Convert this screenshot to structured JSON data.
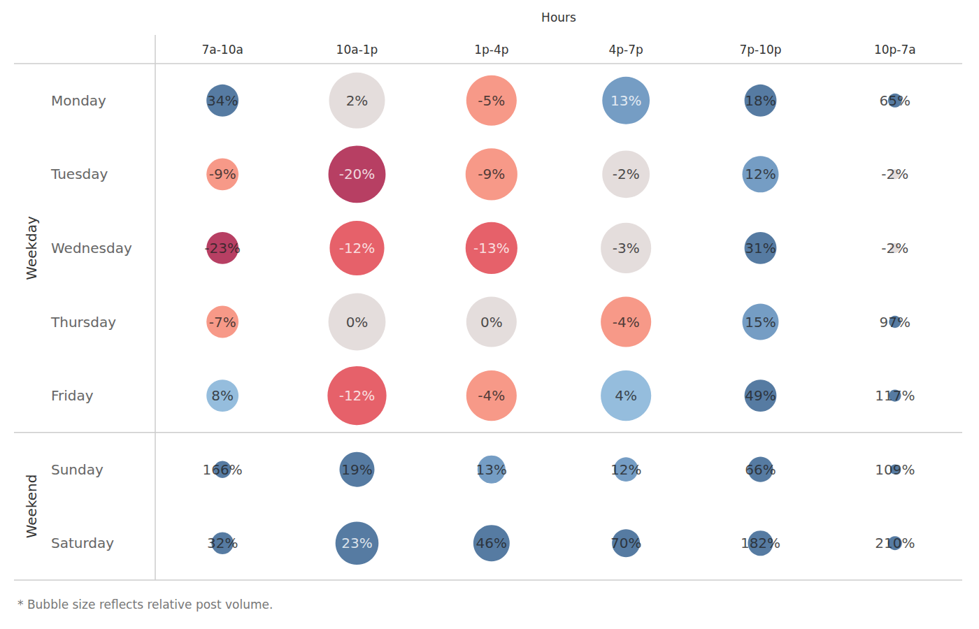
{
  "chart_data": {
    "type": "bubble_grid",
    "x_title": "Hours",
    "categories": [
      "7a-10a",
      "10a-1p",
      "1p-4p",
      "4p-7p",
      "7p-10p",
      "10p-7a"
    ],
    "data_labels": true,
    "footnote": "* Bubble size reflects relative post volume.",
    "groups": [
      {
        "name": "Weekday",
        "rows": [
          {
            "name": "Monday",
            "values": [
              34,
              2,
              -5,
              13,
              18,
              65
            ],
            "value_labels": [
              "34%",
              "2%",
              "-5%",
              "13%",
              "18%",
              "65%"
            ],
            "volume": [
              21,
              64,
              52,
              46,
              21,
              4
            ],
            "colors": [
              "#2c5a8b",
              "#ddd4d3",
              "#f5806a",
              "#5285b5",
              "#2c5a8b",
              "#2c5a8b"
            ]
          },
          {
            "name": "Tuesday",
            "values": [
              -9,
              -20,
              -9,
              -2,
              12,
              -2
            ],
            "value_labels": [
              "-9%",
              "-20%",
              "-9%",
              "-2%",
              "12%",
              "-2%"
            ],
            "volume": [
              21,
              67,
              55,
              46,
              27,
              2
            ],
            "colors": [
              "#f5806a",
              "#a50f3c",
              "#f5806a",
              "#ddd4d3",
              "#5285b5",
              "#ddd4d3"
            ]
          },
          {
            "name": "Wednesday",
            "values": [
              -23,
              -12,
              -13,
              -3,
              31,
              -2
            ],
            "value_labels": [
              "-23%",
              "-12%",
              "-13%",
              "-3%",
              "31%",
              "-2%"
            ],
            "volume": [
              21,
              61,
              55,
              52,
              21,
              2
            ],
            "colors": [
              "#a50f3c",
              "#e03a45",
              "#e03a45",
              "#ddd4d3",
              "#2c5a8b",
              "#ddd4d3"
            ]
          },
          {
            "name": "Thursday",
            "values": [
              -7,
              0,
              0,
              -4,
              15,
              97
            ],
            "value_labels": [
              "-7%",
              "0%",
              "0%",
              "-4%",
              "15%",
              "97%"
            ],
            "volume": [
              21,
              67,
              52,
              52,
              27,
              3
            ],
            "colors": [
              "#f5806a",
              "#ddd4d3",
              "#ddd4d3",
              "#f5806a",
              "#5285b5",
              "#2c5a8b"
            ]
          },
          {
            "name": "Friday",
            "values": [
              8,
              -12,
              -4,
              4,
              49,
              117
            ],
            "value_labels": [
              "8%",
              "-12%",
              "-4%",
              "4%",
              "49%",
              "117%"
            ],
            "volume": [
              21,
              71,
              52,
              52,
              21,
              3
            ],
            "colors": [
              "#7bacd4",
              "#e03a45",
              "#f5806a",
              "#7bacd4",
              "#2c5a8b",
              "#2c5a8b"
            ]
          }
        ]
      },
      {
        "name": "Weekend",
        "rows": [
          {
            "name": "Sunday",
            "values": [
              166,
              19,
              13,
              12,
              66,
              109
            ],
            "value_labels": [
              "166%",
              "19%",
              "13%",
              "12%",
              "66%",
              "109%"
            ],
            "volume": [
              6,
              25,
              16,
              12,
              13,
              2
            ],
            "colors": [
              "#2c5a8b",
              "#2c5a8b",
              "#5285b5",
              "#5285b5",
              "#2c5a8b",
              "#2c5a8b"
            ]
          },
          {
            "name": "Saturday",
            "values": [
              32,
              23,
              46,
              70,
              182,
              210
            ],
            "value_labels": [
              "32%",
              "23%",
              "46%",
              "70%",
              "182%",
              "210%"
            ],
            "volume": [
              10,
              38,
              27,
              16,
              13,
              4
            ],
            "colors": [
              "#2c5a8b",
              "#2c5a8b",
              "#2c5a8b",
              "#2c5a8b",
              "#2c5a8b",
              "#2c5a8b"
            ]
          }
        ]
      }
    ]
  }
}
